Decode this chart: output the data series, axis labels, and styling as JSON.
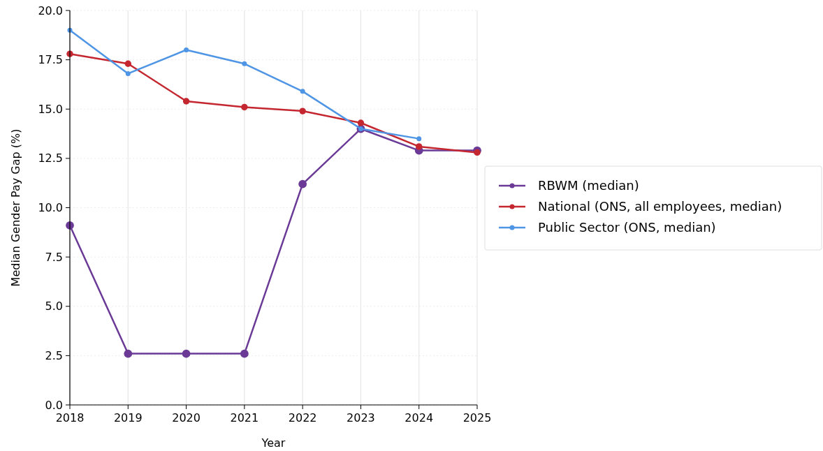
{
  "chart_data": {
    "type": "line",
    "xlabel": "Year",
    "ylabel": "Median Gender Pay Gap (%)",
    "x": [
      2018,
      2019,
      2020,
      2021,
      2022,
      2023,
      2024,
      2025
    ],
    "series": [
      {
        "name": "RBWM (median)",
        "color": "#6a3a96",
        "values": [
          9.1,
          2.6,
          2.6,
          2.6,
          11.2,
          14.0,
          12.9,
          12.9
        ]
      },
      {
        "name": "National (ONS, all employees, median)",
        "color": "#c4272f",
        "values": [
          17.8,
          17.3,
          15.4,
          15.1,
          14.9,
          14.3,
          13.1,
          12.8
        ]
      },
      {
        "name": "Public Sector (ONS, median)",
        "color": "#4f95e5",
        "values": [
          19.0,
          16.8,
          18.0,
          17.3,
          15.9,
          14.0,
          13.5,
          null
        ]
      }
    ],
    "xlim": [
      2018,
      2025
    ],
    "xticks": [
      2018,
      2019,
      2020,
      2021,
      2022,
      2023,
      2024,
      2025
    ],
    "ylim": [
      0,
      20
    ],
    "yticks": [
      {
        "value": 0,
        "label": "0.0"
      },
      {
        "value": 2.5,
        "label": "2.5"
      },
      {
        "value": 5,
        "label": "5.0"
      },
      {
        "value": 7.5,
        "label": "7.5"
      },
      {
        "value": 10,
        "label": "10.0"
      },
      {
        "value": 12.5,
        "label": "12.5"
      },
      {
        "value": 15,
        "label": "15.0"
      },
      {
        "value": 17.5,
        "label": "17.5"
      },
      {
        "value": 20,
        "label": "20.0"
      }
    ],
    "grid": true,
    "legend": "right",
    "marker": "circle",
    "line_style": "solid"
  }
}
